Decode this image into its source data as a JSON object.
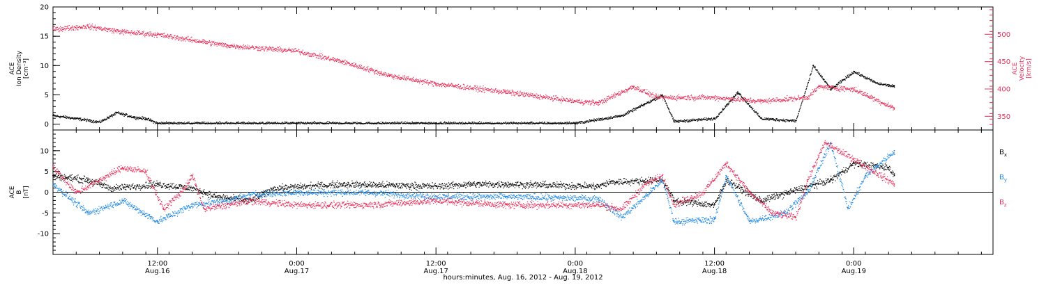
{
  "colors": {
    "black": "#000000",
    "pink": "#e8305a",
    "blue": "#1e88e5"
  },
  "footer": "hours:minutes, Aug. 16, 2012 - Aug. 19, 2012",
  "time_axis": {
    "start": "2012-08-16 03:00",
    "end": "2012-08-19 12:00",
    "ticks": [
      {
        "time": "2012-08-16 12:00",
        "line1": "12:00",
        "line2": "Aug.16"
      },
      {
        "time": "2012-08-17 00:00",
        "line1": "0:00",
        "line2": "Aug.17"
      },
      {
        "time": "2012-08-17 12:00",
        "line1": "12:00",
        "line2": "Aug.17"
      },
      {
        "time": "2012-08-18 00:00",
        "line1": "0:00",
        "line2": "Aug.18"
      },
      {
        "time": "2012-08-18 12:00",
        "line1": "12:00",
        "line2": "Aug.18"
      },
      {
        "time": "2012-08-19 00:00",
        "line1": "0:00",
        "line2": "Aug.19"
      }
    ]
  },
  "chart_data": [
    {
      "type": "scatter",
      "panel": "top",
      "left_axis": {
        "label_lines": [
          "ACE",
          "Ion Density",
          "[cm⁻³]"
        ],
        "ylim": [
          -1,
          20
        ],
        "ticks": [
          0,
          5,
          10,
          15,
          20
        ],
        "color": "#000000"
      },
      "right_axis": {
        "label_lines": [
          "ACE",
          "Velocity",
          "[km/s]"
        ],
        "ylim": [
          325,
          550
        ],
        "ticks": [
          350,
          400,
          450,
          500
        ],
        "color": "#e8305a"
      },
      "series": [
        {
          "key": "density",
          "axis": "left",
          "color": "#000000",
          "points": [
            [
              "2012-08-16 03:00",
              1.5
            ],
            [
              "2012-08-16 05:00",
              1.0
            ],
            [
              "2012-08-16 07:00",
              0.4
            ],
            [
              "2012-08-16 08:30",
              2.0
            ],
            [
              "2012-08-16 10:00",
              1.2
            ],
            [
              "2012-08-16 11:00",
              1.0
            ],
            [
              "2012-08-16 12:00",
              0.2
            ],
            [
              "2012-08-17 00:00",
              0.2
            ],
            [
              "2012-08-17 12:00",
              0.2
            ],
            [
              "2012-08-18 00:00",
              0.2
            ],
            [
              "2012-08-18 04:00",
              1.5
            ],
            [
              "2012-08-18 06:00",
              3.5
            ],
            [
              "2012-08-18 07:30",
              5.0
            ],
            [
              "2012-08-18 08:30",
              0.5
            ],
            [
              "2012-08-18 12:00",
              1.0
            ],
            [
              "2012-08-18 14:00",
              5.5
            ],
            [
              "2012-08-18 16:00",
              1.0
            ],
            [
              "2012-08-18 19:00",
              0.6
            ],
            [
              "2012-08-18 20:30",
              10.0
            ],
            [
              "2012-08-18 22:00",
              6.0
            ],
            [
              "2012-08-19 00:00",
              9.0
            ],
            [
              "2012-08-19 02:00",
              7.0
            ],
            [
              "2012-08-19 03:30",
              6.5
            ]
          ]
        },
        {
          "key": "velocity",
          "axis": "right",
          "color": "#e8305a",
          "points": [
            [
              "2012-08-16 03:00",
              510
            ],
            [
              "2012-08-16 06:00",
              515
            ],
            [
              "2012-08-16 09:00",
              505
            ],
            [
              "2012-08-16 12:00",
              500
            ],
            [
              "2012-08-16 18:00",
              480
            ],
            [
              "2012-08-17 00:00",
              470
            ],
            [
              "2012-08-17 04:00",
              450
            ],
            [
              "2012-08-17 08:00",
              425
            ],
            [
              "2012-08-17 12:00",
              410
            ],
            [
              "2012-08-17 18:00",
              395
            ],
            [
              "2012-08-18 00:00",
              378
            ],
            [
              "2012-08-18 02:00",
              375
            ],
            [
              "2012-08-18 05:00",
              405
            ],
            [
              "2012-08-18 07:00",
              385
            ],
            [
              "2012-08-18 12:00",
              385
            ],
            [
              "2012-08-18 16:00",
              378
            ],
            [
              "2012-08-18 20:00",
              385
            ],
            [
              "2012-08-18 21:00",
              405
            ],
            [
              "2012-08-19 00:00",
              400
            ],
            [
              "2012-08-19 03:30",
              365
            ]
          ]
        }
      ]
    },
    {
      "type": "scatter",
      "panel": "bottom",
      "left_axis": {
        "label_lines": [
          "ACE",
          "B",
          "[nT]"
        ],
        "ylim": [
          -15,
          15
        ],
        "ticks": [
          -10,
          -5,
          0,
          5,
          10
        ],
        "color": "#000000"
      },
      "zero_line": true,
      "series": [
        {
          "key": "bx",
          "name": "B",
          "subscript": "x",
          "color": "#000000",
          "points": [
            [
              "2012-08-16 03:00",
              4
            ],
            [
              "2012-08-16 06:00",
              3
            ],
            [
              "2012-08-16 08:00",
              1
            ],
            [
              "2012-08-16 12:00",
              2
            ],
            [
              "2012-08-16 15:00",
              1
            ],
            [
              "2012-08-16 17:00",
              -1
            ],
            [
              "2012-08-16 20:00",
              -2
            ],
            [
              "2012-08-16 22:00",
              1
            ],
            [
              "2012-08-17 04:00",
              2
            ],
            [
              "2012-08-17 12:00",
              1.5
            ],
            [
              "2012-08-17 15:00",
              2
            ],
            [
              "2012-08-17 18:00",
              2
            ],
            [
              "2012-08-18 02:00",
              1.5
            ],
            [
              "2012-08-18 03:00",
              2.5
            ],
            [
              "2012-08-18 07:30",
              3
            ],
            [
              "2012-08-18 08:30",
              -2
            ],
            [
              "2012-08-18 12:00",
              -3
            ],
            [
              "2012-08-18 13:00",
              3
            ],
            [
              "2012-08-18 16:00",
              -2
            ],
            [
              "2012-08-18 19:30",
              1
            ],
            [
              "2012-08-18 22:00",
              3
            ],
            [
              "2012-08-19 00:00",
              7
            ],
            [
              "2012-08-19 03:00",
              6
            ],
            [
              "2012-08-19 03:30",
              4
            ]
          ]
        },
        {
          "key": "by",
          "name": "B",
          "subscript": "y",
          "color": "#1e88e5",
          "points": [
            [
              "2012-08-16 03:00",
              2
            ],
            [
              "2012-08-16 06:00",
              -5
            ],
            [
              "2012-08-16 09:00",
              -2
            ],
            [
              "2012-08-16 12:00",
              -7
            ],
            [
              "2012-08-16 15:00",
              -3
            ],
            [
              "2012-08-16 18:00",
              -2
            ],
            [
              "2012-08-16 20:00",
              -0.5
            ],
            [
              "2012-08-17 00:00",
              0
            ],
            [
              "2012-08-17 06:00",
              0
            ],
            [
              "2012-08-17 12:00",
              -1
            ],
            [
              "2012-08-17 18:00",
              -1
            ],
            [
              "2012-08-18 02:00",
              -1.5
            ],
            [
              "2012-08-18 04:00",
              -6
            ],
            [
              "2012-08-18 06:00",
              -1
            ],
            [
              "2012-08-18 07:30",
              3
            ],
            [
              "2012-08-18 08:30",
              -7
            ],
            [
              "2012-08-18 12:00",
              -6.5
            ],
            [
              "2012-08-18 13:00",
              4
            ],
            [
              "2012-08-18 15:00",
              -7
            ],
            [
              "2012-08-18 18:00",
              -5
            ],
            [
              "2012-08-18 20:00",
              0
            ],
            [
              "2012-08-18 22:00",
              12
            ],
            [
              "2012-08-18 23:30",
              -4
            ],
            [
              "2012-08-19 01:00",
              4
            ],
            [
              "2012-08-19 03:30",
              10
            ]
          ]
        },
        {
          "key": "bz",
          "name": "B",
          "subscript": "z",
          "color": "#e8305a",
          "points": [
            [
              "2012-08-16 03:00",
              6
            ],
            [
              "2012-08-16 05:00",
              0
            ],
            [
              "2012-08-16 07:00",
              3
            ],
            [
              "2012-08-16 09:00",
              6
            ],
            [
              "2012-08-16 11:00",
              5
            ],
            [
              "2012-08-16 12:30",
              -4
            ],
            [
              "2012-08-16 14:00",
              0
            ],
            [
              "2012-08-16 15:00",
              4
            ],
            [
              "2012-08-16 16:00",
              -4
            ],
            [
              "2012-08-16 20:00",
              -2
            ],
            [
              "2012-08-17 00:00",
              -3
            ],
            [
              "2012-08-17 06:00",
              -3
            ],
            [
              "2012-08-17 12:00",
              -2
            ],
            [
              "2012-08-17 18:00",
              -3
            ],
            [
              "2012-08-18 02:00",
              -3
            ],
            [
              "2012-08-18 04:00",
              -4
            ],
            [
              "2012-08-18 06:00",
              2
            ],
            [
              "2012-08-18 07:30",
              4
            ],
            [
              "2012-08-18 08:30",
              -3
            ],
            [
              "2012-08-18 11:00",
              0
            ],
            [
              "2012-08-18 13:00",
              7
            ],
            [
              "2012-08-18 15:00",
              0
            ],
            [
              "2012-08-18 17:00",
              -5
            ],
            [
              "2012-08-18 19:00",
              -6
            ],
            [
              "2012-08-18 20:00",
              3
            ],
            [
              "2012-08-18 21:30",
              12
            ],
            [
              "2012-08-19 00:00",
              8
            ],
            [
              "2012-08-19 03:30",
              2
            ]
          ]
        }
      ]
    }
  ]
}
